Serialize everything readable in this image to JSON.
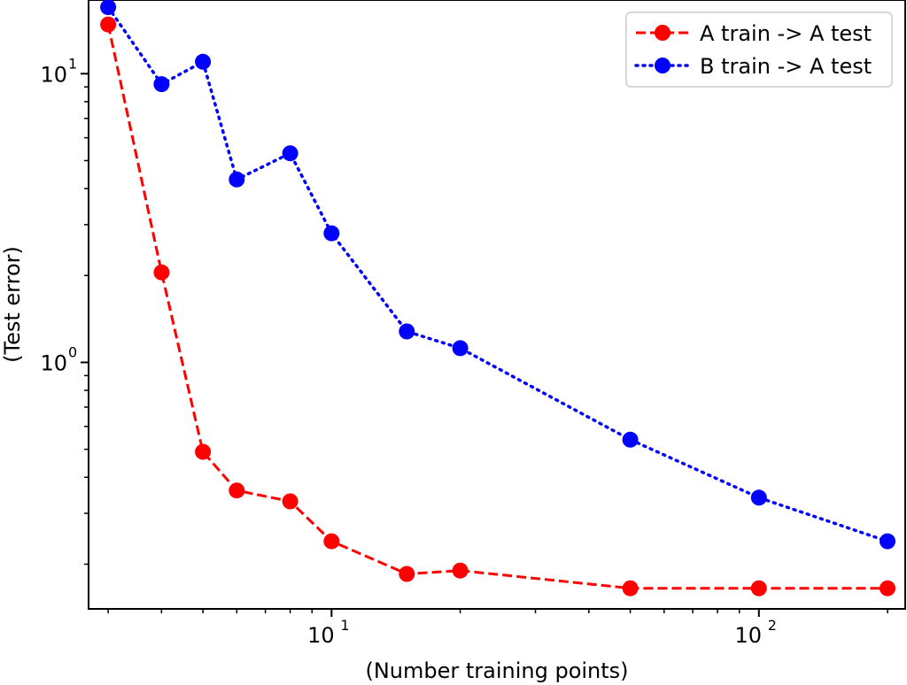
{
  "chart_data": {
    "type": "line",
    "title": "",
    "xlabel": "(Number training points)",
    "ylabel": "(Test error)",
    "xscale": "log",
    "yscale": "log",
    "xlim": [
      2.7,
      220
    ],
    "ylim": [
      0.14,
      18
    ],
    "grid": false,
    "legend_position": "top-right",
    "x_ticks": [
      {
        "value": 10,
        "label": "10",
        "exp": "1"
      },
      {
        "value": 100,
        "label": "10",
        "exp": "2"
      }
    ],
    "y_ticks": [
      {
        "value": 1,
        "label": "10",
        "exp": "0"
      },
      {
        "value": 10,
        "label": "10",
        "exp": "1"
      }
    ],
    "x": [
      3,
      4,
      5,
      6,
      8,
      10,
      15,
      20,
      50,
      100,
      200
    ],
    "series": [
      {
        "name": "A train -> A test",
        "color": "#ff0000",
        "line_style": "dashed",
        "values": [
          14.8,
          2.05,
          0.49,
          0.36,
          0.33,
          0.24,
          0.185,
          0.19,
          0.165,
          0.165,
          0.165
        ]
      },
      {
        "name": "B train -> A test",
        "color": "#0000ff",
        "line_style": "dotted",
        "values": [
          17.0,
          9.2,
          11.0,
          4.3,
          5.3,
          2.8,
          1.28,
          1.12,
          0.54,
          0.34,
          0.24
        ]
      }
    ]
  }
}
